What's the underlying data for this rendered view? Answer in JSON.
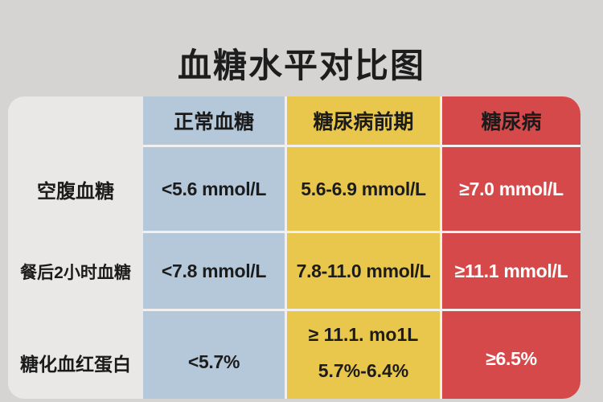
{
  "title": "血糖水平对比图",
  "colors": {
    "page_background": "#d6d4d3",
    "label_panel": "#eae8e6",
    "normal_column": "#b5c8d9",
    "prediabetes_column": "#e9c64c",
    "diabetes_column": "#d6494a",
    "separator": "#f2f0ee",
    "dark_text": "#1b1b1b",
    "diabetes_text": "#ffffff"
  },
  "table": {
    "headers": {
      "normal": "正常血糖",
      "prediabetes": "糖尿病前期",
      "diabetes": "糖尿病"
    },
    "rows": [
      {
        "label": "空腹血糖",
        "normal": "<5.6 mmol/L",
        "prediabetes": "5.6-6.9 mmol/L",
        "diabetes": "≥7.0 mmol/L"
      },
      {
        "label": "餐后2小时血糖",
        "normal": "<7.8 mmol/L",
        "prediabetes": "7.8-11.0 mmol/L",
        "diabetes": "≥11.1 mmol/L"
      },
      {
        "label": "糖化血红蛋白",
        "normal": "<5.7%",
        "prediabetes_line1": "≥ 11.1. mo1L",
        "prediabetes_line2": "5.7%-6.4%",
        "diabetes": "≥6.5%"
      }
    ]
  },
  "chart_data": {
    "type": "table",
    "title": "血糖水平对比图",
    "column_headers": [
      "正常血糖",
      "糖尿病前期",
      "糖尿病"
    ],
    "row_headers": [
      "空腹血糖",
      "餐后2小时血糖",
      "糖化血红蛋白"
    ],
    "cells": [
      [
        "<5.6 mmol/L",
        "5.6-6.9 mmol/L",
        "≥7.0 mmol/L"
      ],
      [
        "<7.8 mmol/L",
        "7.8-11.0 mmol/L",
        "≥11.1 mmol/L"
      ],
      [
        "<5.7%",
        "≥ 11.1. mo1L  5.7%-6.4%",
        "≥6.5%"
      ]
    ],
    "legend_position": "none",
    "grid": false
  }
}
